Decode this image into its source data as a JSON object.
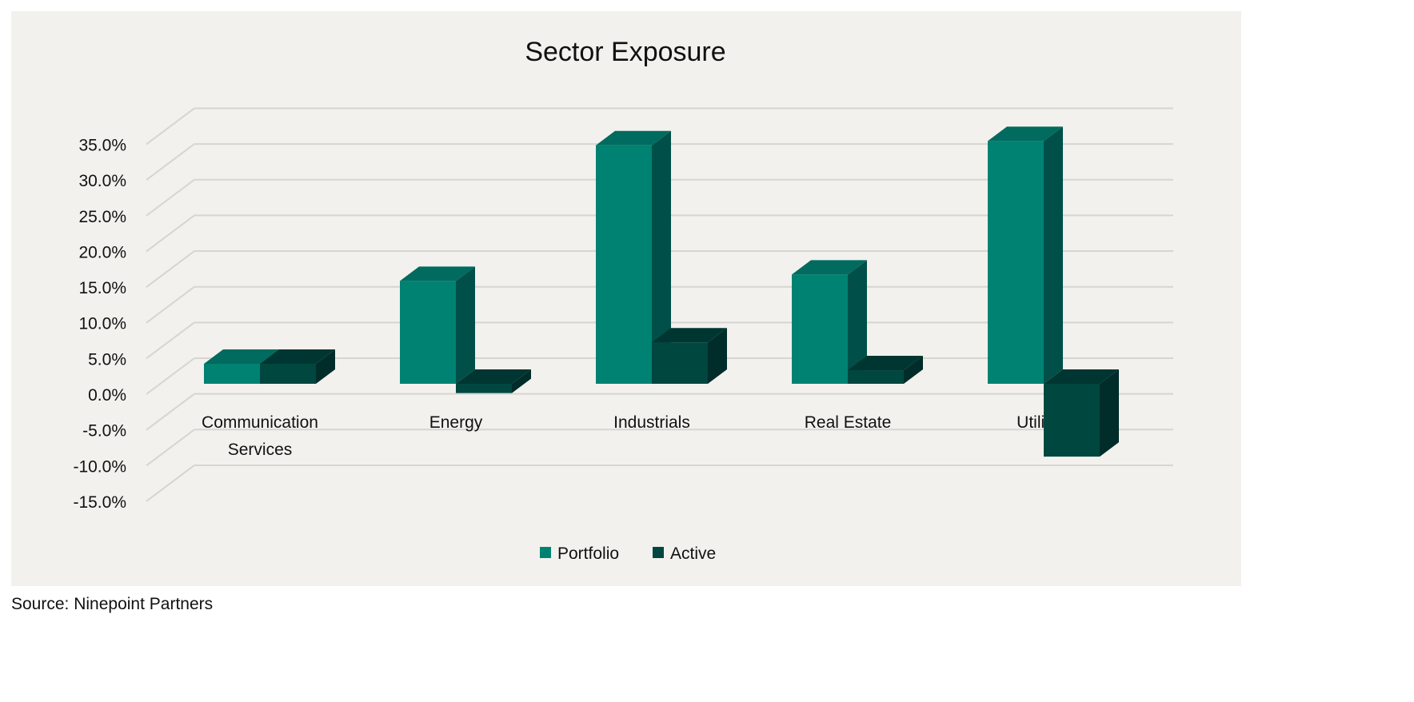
{
  "chart_data": {
    "type": "bar",
    "style": "3d-clustered-column",
    "title": "Sector Exposure",
    "xlabel": "",
    "ylabel": "",
    "categories": [
      [
        "Communication",
        "Services"
      ],
      [
        "Energy"
      ],
      [
        "Industrials"
      ],
      [
        "Real Estate"
      ],
      [
        "Utilities"
      ]
    ],
    "series": [
      {
        "name": "Portfolio",
        "color": "#008272",
        "values": [
          2.8,
          14.4,
          33.4,
          15.3,
          34.0
        ]
      },
      {
        "name": "Active",
        "color": "#00473f",
        "values": [
          2.8,
          -1.3,
          5.8,
          1.9,
          -10.2
        ]
      }
    ],
    "ylim": [
      -15,
      35
    ],
    "yticks": [
      "-15.0%",
      "-10.0%",
      "-5.0%",
      "0.0%",
      "5.0%",
      "10.0%",
      "15.0%",
      "20.0%",
      "25.0%",
      "30.0%",
      "35.0%"
    ],
    "ytick_values": [
      -15,
      -10,
      -5,
      0,
      5,
      10,
      15,
      20,
      25,
      30,
      35
    ],
    "grid": true,
    "legend": "bottom"
  },
  "source": "Source: Ninepoint Partners"
}
